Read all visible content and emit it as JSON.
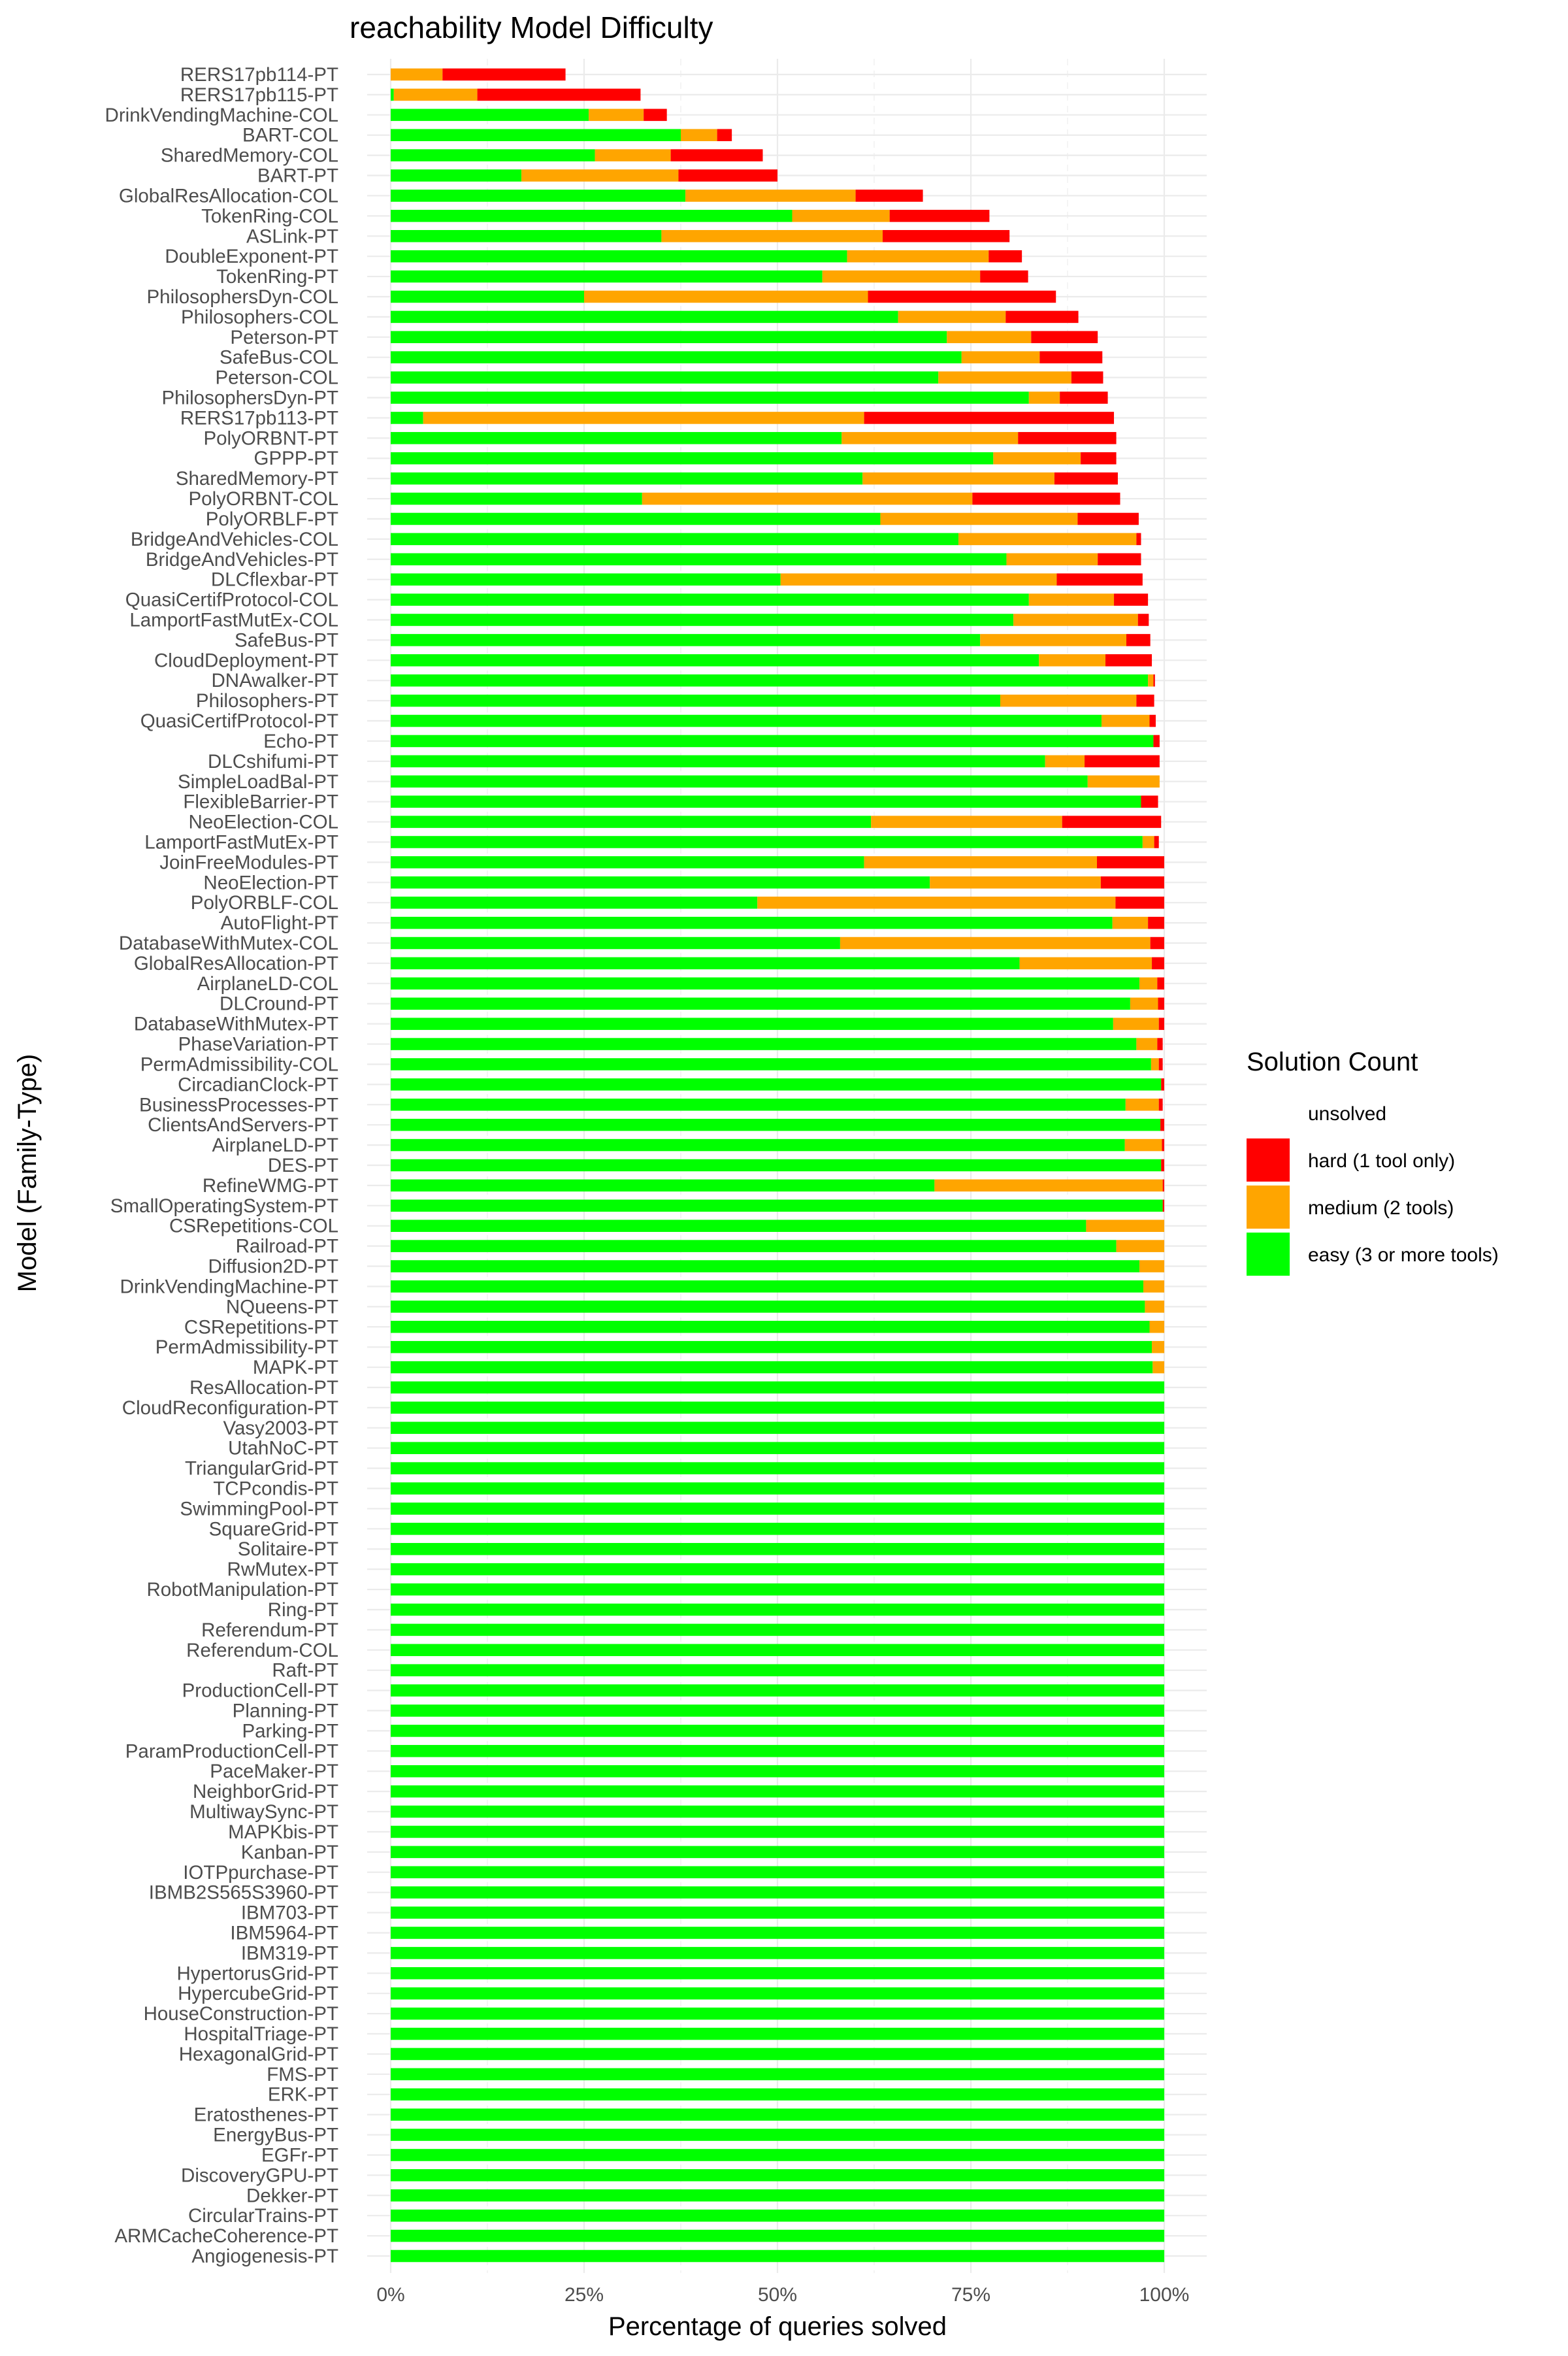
{
  "chart_data": {
    "type": "bar",
    "orientation": "horizontal",
    "stacked": true,
    "title": "reachability Model Difficulty",
    "xlabel": "Percentage of queries solved",
    "ylabel": "Model (Family-Type)",
    "xlim": [
      0,
      100
    ],
    "x_ticks": [
      "0%",
      "25%",
      "50%",
      "75%",
      "100%"
    ],
    "x_tick_values": [
      0,
      25,
      50,
      75,
      100
    ],
    "grid": true,
    "legend": {
      "title": "Solution Count",
      "placement": "right",
      "entries": [
        {
          "key": "unsolved",
          "label": "unsolved",
          "color": "#ffffff"
        },
        {
          "key": "hard",
          "label": "hard (1 tool only)",
          "color": "#ff0000"
        },
        {
          "key": "medium",
          "label": "medium (2 tools)",
          "color": "#ffa500"
        },
        {
          "key": "easy",
          "label": "easy (3 or more tools)",
          "color": "#00ff00"
        }
      ]
    },
    "series_order": [
      "easy",
      "medium",
      "hard"
    ],
    "colors": {
      "easy": "#00ff00",
      "medium": "#ffa500",
      "hard": "#ff0000"
    },
    "categories": [
      "RERS17pb114-PT",
      "RERS17pb115-PT",
      "DrinkVendingMachine-COL",
      "BART-COL",
      "SharedMemory-COL",
      "BART-PT",
      "GlobalResAllocation-COL",
      "TokenRing-COL",
      "ASLink-PT",
      "DoubleExponent-PT",
      "TokenRing-PT",
      "PhilosophersDyn-COL",
      "Philosophers-COL",
      "Peterson-PT",
      "SafeBus-COL",
      "Peterson-COL",
      "PhilosophersDyn-PT",
      "RERS17pb113-PT",
      "PolyORBNT-PT",
      "GPPP-PT",
      "SharedMemory-PT",
      "PolyORBNT-COL",
      "PolyORBLF-PT",
      "BridgeAndVehicles-COL",
      "BridgeAndVehicles-PT",
      "DLCflexbar-PT",
      "QuasiCertifProtocol-COL",
      "LamportFastMutEx-COL",
      "SafeBus-PT",
      "CloudDeployment-PT",
      "DNAwalker-PT",
      "Philosophers-PT",
      "QuasiCertifProtocol-PT",
      "Echo-PT",
      "DLCshifumi-PT",
      "SimpleLoadBal-PT",
      "FlexibleBarrier-PT",
      "NeoElection-COL",
      "LamportFastMutEx-PT",
      "JoinFreeModules-PT",
      "NeoElection-PT",
      "PolyORBLF-COL",
      "AutoFlight-PT",
      "DatabaseWithMutex-COL",
      "GlobalResAllocation-PT",
      "AirplaneLD-COL",
      "DLCround-PT",
      "DatabaseWithMutex-PT",
      "PhaseVariation-PT",
      "PermAdmissibility-COL",
      "CircadianClock-PT",
      "BusinessProcesses-PT",
      "ClientsAndServers-PT",
      "AirplaneLD-PT",
      "DES-PT",
      "RefineWMG-PT",
      "SmallOperatingSystem-PT",
      "CSRepetitions-COL",
      "Railroad-PT",
      "Diffusion2D-PT",
      "DrinkVendingMachine-PT",
      "NQueens-PT",
      "CSRepetitions-PT",
      "PermAdmissibility-PT",
      "MAPK-PT",
      "ResAllocation-PT",
      "CloudReconfiguration-PT",
      "Vasy2003-PT",
      "UtahNoC-PT",
      "TriangularGrid-PT",
      "TCPcondis-PT",
      "SwimmingPool-PT",
      "SquareGrid-PT",
      "Solitaire-PT",
      "RwMutex-PT",
      "RobotManipulation-PT",
      "Ring-PT",
      "Referendum-PT",
      "Referendum-COL",
      "Raft-PT",
      "ProductionCell-PT",
      "Planning-PT",
      "Parking-PT",
      "ParamProductionCell-PT",
      "PaceMaker-PT",
      "NeighborGrid-PT",
      "MultiwaySync-PT",
      "MAPKbis-PT",
      "Kanban-PT",
      "IOTPpurchase-PT",
      "IBMB2S565S3960-PT",
      "IBM703-PT",
      "IBM5964-PT",
      "IBM319-PT",
      "HypertorusGrid-PT",
      "HypercubeGrid-PT",
      "HouseConstruction-PT",
      "HospitalTriage-PT",
      "HexagonalGrid-PT",
      "FMS-PT",
      "ERK-PT",
      "Eratosthenes-PT",
      "EnergyBus-PT",
      "EGFr-PT",
      "DiscoveryGPU-PT",
      "Dekker-PT",
      "CircularTrains-PT",
      "ARMCacheCoherence-PT",
      "Angiogenesis-PT"
    ],
    "series": [
      {
        "key": "easy",
        "values": [
          0,
          0.4,
          25.6,
          37.5,
          26.4,
          16.9,
          38.1,
          51.9,
          35.0,
          59.0,
          55.8,
          25.0,
          65.6,
          71.9,
          73.8,
          70.8,
          82.5,
          4.2,
          58.3,
          77.9,
          61.0,
          32.5,
          63.3,
          73.4,
          79.6,
          50.4,
          82.5,
          80.5,
          76.2,
          83.8,
          97.9,
          78.8,
          91.9,
          98.6,
          84.6,
          90.1,
          97.0,
          62.1,
          97.2,
          61.2,
          69.7,
          47.4,
          93.3,
          58.1,
          81.3,
          96.8,
          95.6,
          93.4,
          96.4,
          98.3,
          99.6,
          95.0,
          99.5,
          94.9,
          99.6,
          70.3,
          99.8,
          89.9,
          93.8,
          96.8,
          97.3,
          97.5,
          98.1,
          98.4,
          98.5,
          100,
          100,
          100,
          100,
          100,
          100,
          100,
          100,
          100,
          100,
          100,
          100,
          100,
          100,
          100,
          100,
          100,
          100,
          100,
          100,
          100,
          100,
          100,
          100,
          100,
          100,
          100,
          100,
          100,
          100,
          100,
          100,
          100,
          100,
          100,
          100,
          100,
          100,
          100,
          100,
          100,
          100,
          100,
          100
        ]
      },
      {
        "key": "medium",
        "values": [
          6.7,
          10.8,
          7.1,
          4.7,
          9.8,
          20.3,
          22.0,
          12.6,
          28.6,
          18.3,
          20.4,
          36.7,
          13.9,
          10.9,
          10.1,
          17.2,
          4.0,
          57.0,
          22.8,
          11.3,
          24.8,
          42.7,
          25.5,
          23.0,
          11.8,
          35.7,
          11.0,
          16.1,
          18.9,
          8.6,
          0.7,
          17.6,
          6.2,
          0,
          5.1,
          9.3,
          0,
          24.7,
          1.5,
          30.1,
          22.1,
          46.3,
          4.6,
          40.1,
          17.1,
          2.3,
          3.6,
          5.9,
          2.7,
          1.0,
          0,
          4.3,
          0,
          4.8,
          0,
          29.5,
          0,
          10.1,
          6.2,
          3.2,
          2.7,
          2.5,
          1.9,
          1.6,
          1.5,
          0,
          0,
          0,
          0,
          0,
          0,
          0,
          0,
          0,
          0,
          0,
          0,
          0,
          0,
          0,
          0,
          0,
          0,
          0,
          0,
          0,
          0,
          0,
          0,
          0,
          0,
          0,
          0,
          0,
          0,
          0,
          0,
          0,
          0,
          0,
          0,
          0,
          0,
          0,
          0,
          0,
          0,
          0,
          0
        ]
      },
      {
        "key": "hard",
        "values": [
          15.9,
          21.1,
          3.0,
          1.9,
          11.9,
          12.8,
          8.7,
          12.9,
          16.4,
          4.3,
          6.2,
          24.3,
          9.4,
          8.6,
          8.1,
          4.1,
          6.2,
          32.3,
          12.7,
          4.6,
          8.2,
          19.1,
          7.9,
          0.6,
          5.6,
          11.1,
          4.4,
          1.4,
          3.1,
          6.0,
          0.2,
          2.3,
          0.8,
          0.8,
          9.7,
          0,
          2.2,
          12.8,
          0.6,
          8.7,
          8.2,
          6.3,
          2.1,
          1.8,
          1.6,
          0.9,
          0.8,
          0.7,
          0.7,
          0.5,
          0.4,
          0.5,
          0.5,
          0.3,
          0.4,
          0.2,
          0.2,
          0,
          0,
          0,
          0,
          0,
          0,
          0,
          0,
          0,
          0,
          0,
          0,
          0,
          0,
          0,
          0,
          0,
          0,
          0,
          0,
          0,
          0,
          0,
          0,
          0,
          0,
          0,
          0,
          0,
          0,
          0,
          0,
          0,
          0,
          0,
          0,
          0,
          0,
          0,
          0,
          0,
          0,
          0,
          0,
          0,
          0,
          0,
          0,
          0,
          0,
          0,
          0
        ]
      }
    ]
  }
}
